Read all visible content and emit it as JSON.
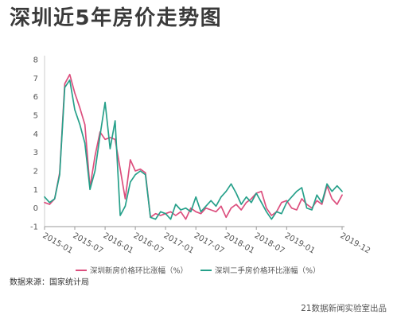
{
  "chart_data": {
    "type": "line",
    "title": "深圳近5年房价走势图",
    "x": [
      "2015-01",
      "2015-02",
      "2015-03",
      "2015-04",
      "2015-05",
      "2015-06",
      "2015-07",
      "2015-08",
      "2015-09",
      "2015-10",
      "2015-11",
      "2015-12",
      "2016-01",
      "2016-02",
      "2016-03",
      "2016-04",
      "2016-05",
      "2016-06",
      "2016-07",
      "2016-08",
      "2016-09",
      "2016-10",
      "2016-11",
      "2016-12",
      "2017-01",
      "2017-02",
      "2017-03",
      "2017-04",
      "2017-05",
      "2017-06",
      "2017-07",
      "2017-08",
      "2017-09",
      "2017-10",
      "2017-11",
      "2017-12",
      "2018-01",
      "2018-02",
      "2018-03",
      "2018-04",
      "2018-05",
      "2018-06",
      "2018-07",
      "2018-08",
      "2018-09",
      "2018-10",
      "2018-11",
      "2018-12",
      "2019-01",
      "2019-02",
      "2019-03",
      "2019-04",
      "2019-05",
      "2019-06",
      "2019-07",
      "2019-08",
      "2019-09",
      "2019-10",
      "2019-11",
      "2019-12"
    ],
    "x_ticks": [
      "2015-01",
      "2015-07",
      "2016-01",
      "2016-07",
      "2017-01",
      "2017-07",
      "2018-01",
      "2018-07",
      "2019-01",
      "2019-12"
    ],
    "y_ticks": [
      -1,
      0,
      1,
      2,
      3,
      4,
      5,
      6,
      7,
      8
    ],
    "ylim": [
      -1,
      8
    ],
    "grid": false,
    "legend_position": "bottom",
    "series": [
      {
        "name": "深圳新房价格环比涨幅（%）",
        "color": "#dc4f7e",
        "values": [
          0.3,
          0.2,
          0.5,
          1.9,
          6.7,
          7.2,
          6.2,
          5.4,
          4.5,
          1.1,
          2.8,
          4.1,
          3.7,
          3.8,
          3.7,
          2.1,
          0.5,
          2.6,
          2.0,
          2.1,
          1.9,
          -0.5,
          -0.3,
          -0.4,
          -0.3,
          -0.2,
          -0.4,
          -0.2,
          -0.6,
          0.0,
          -0.2,
          -0.3,
          0.0,
          -0.1,
          -0.2,
          0.1,
          -0.5,
          0.0,
          0.2,
          -0.1,
          0.3,
          0.5,
          0.8,
          0.9,
          0.0,
          -0.4,
          -0.2,
          0.3,
          0.4,
          0.0,
          -0.1,
          0.5,
          0.2,
          0.0,
          0.4,
          0.2,
          1.2,
          0.5,
          0.2,
          0.7
        ]
      },
      {
        "name": "深圳二手房价格环比涨幅（%）",
        "color": "#26a08a",
        "values": [
          0.6,
          0.3,
          0.5,
          1.8,
          6.5,
          6.9,
          5.3,
          4.5,
          3.5,
          1.0,
          2.0,
          3.9,
          5.7,
          3.2,
          4.7,
          -0.4,
          0.1,
          1.4,
          1.8,
          2.0,
          1.8,
          -0.5,
          -0.6,
          -0.2,
          -0.3,
          -0.6,
          0.2,
          -0.1,
          0.0,
          -0.2,
          0.6,
          -0.2,
          0.1,
          0.4,
          0.1,
          0.6,
          0.9,
          1.3,
          0.8,
          0.2,
          0.6,
          0.3,
          0.8,
          0.3,
          -0.2,
          -0.6,
          -0.2,
          -0.3,
          0.3,
          0.6,
          0.9,
          1.1,
          0.0,
          -0.1,
          0.7,
          0.3,
          1.3,
          0.9,
          1.2,
          0.9
        ]
      }
    ]
  },
  "footer": {
    "source": "数据来源：国家统计局",
    "credit": "21数据新闻实验室出品"
  }
}
